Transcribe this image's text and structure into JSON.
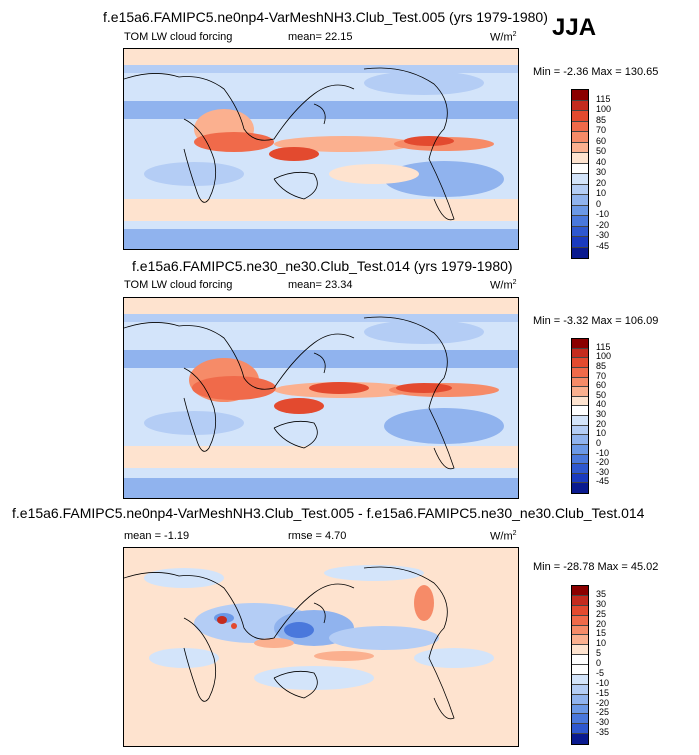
{
  "season": "JJA",
  "panels": [
    {
      "title": "f.e15a6.FAMIPC5.ne0np4-VarMeshNH3.Club_Test.005 (yrs 1979-1980)",
      "left_label": "TOM LW cloud forcing",
      "center_label": "mean=  22.15",
      "units": "W/m",
      "units_sup": "2",
      "minmax": "Min =  -2.36  Max = 130.65",
      "colorbar": {
        "levels": [
          "115",
          "100",
          "85",
          "70",
          "60",
          "50",
          "40",
          "30",
          "20",
          "10",
          "0",
          "-10",
          "-20",
          "-30",
          "-45"
        ],
        "colors": [
          "#8b0000",
          "#c42b1e",
          "#e34a2f",
          "#f06a4a",
          "#f68b68",
          "#fbb08f",
          "#fee3cf",
          "#ffffff",
          "#d3e4fa",
          "#b4cdf5",
          "#90b3ee",
          "#6b98e6",
          "#4a78dc",
          "#2f58cf",
          "#1b3bbf",
          "#0a1a8f"
        ]
      }
    },
    {
      "title": "f.e15a6.FAMIPC5.ne30_ne30.Club_Test.014 (yrs 1979-1980)",
      "left_label": "TOM LW cloud forcing",
      "center_label": "mean=  23.34",
      "units": "W/m",
      "units_sup": "2",
      "minmax": "Min =  -3.32  Max = 106.09",
      "colorbar": {
        "levels": [
          "115",
          "100",
          "85",
          "70",
          "60",
          "50",
          "40",
          "30",
          "20",
          "10",
          "0",
          "-10",
          "-20",
          "-30",
          "-45"
        ],
        "colors": [
          "#8b0000",
          "#c42b1e",
          "#e34a2f",
          "#f06a4a",
          "#f68b68",
          "#fbb08f",
          "#fee3cf",
          "#ffffff",
          "#d3e4fa",
          "#b4cdf5",
          "#90b3ee",
          "#6b98e6",
          "#4a78dc",
          "#2f58cf",
          "#1b3bbf",
          "#0a1a8f"
        ]
      }
    },
    {
      "title": "f.e15a6.FAMIPC5.ne0np4-VarMeshNH3.Club_Test.005 - f.e15a6.FAMIPC5.ne30_ne30.Club_Test.014",
      "left_label": "mean =  -1.19",
      "center_label": "rmse =   4.70",
      "units": "W/m",
      "units_sup": "2",
      "minmax": "Min = -28.78  Max =  45.02",
      "colorbar": {
        "levels": [
          "35",
          "30",
          "25",
          "20",
          "15",
          "10",
          "5",
          "0",
          "-5",
          "-10",
          "-15",
          "-20",
          "-25",
          "-30",
          "-35"
        ],
        "colors": [
          "#8b0000",
          "#c42b1e",
          "#e34a2f",
          "#f06a4a",
          "#f68b68",
          "#fbb08f",
          "#fee3cf",
          "#ffffff",
          "#ffffff",
          "#d3e4fa",
          "#b4cdf5",
          "#90b3ee",
          "#6b98e6",
          "#4a78dc",
          "#2f58cf",
          "#0a1a8f"
        ]
      }
    }
  ]
}
